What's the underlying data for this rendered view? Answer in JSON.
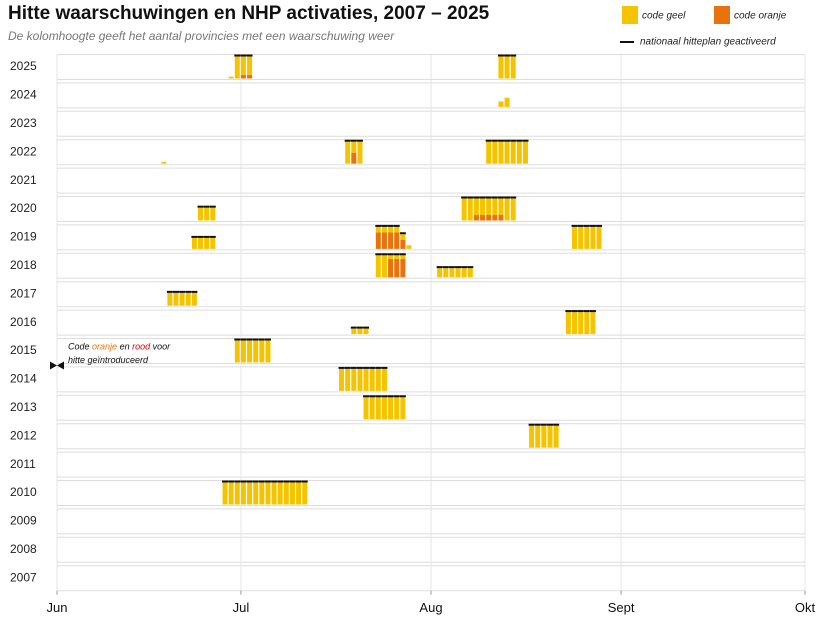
{
  "chart_data": {
    "type": "timeline-bar",
    "title": "Hitte waarschuwingen en NHP activaties, 2007 – 2025",
    "subtitle": "De kolomhoogte geeft het aantal provincies met een waarschuwing weer",
    "series": [
      {
        "name": "code geel",
        "color": "#f5c400"
      },
      {
        "name": "code oranje",
        "color": "#e8730c"
      }
    ],
    "line_legend": "nationaal hitteplan geactiveerd",
    "xlim": [
      0,
      122
    ],
    "xticks": [
      {
        "value": 0,
        "label": "Jun"
      },
      {
        "value": 30,
        "label": "Jul"
      },
      {
        "value": 61,
        "label": "Aug"
      },
      {
        "value": 92,
        "label": "Sept"
      },
      {
        "value": 122,
        "label": "Okt"
      }
    ],
    "ylim": [
      0,
      12
    ],
    "grid": true,
    "annotation": {
      "parts": [
        "Code ",
        "oranje",
        " en ",
        "rood",
        " voor"
      ],
      "line2": "hitte geïntroduceerd",
      "x": 0,
      "year": "2015"
    },
    "rows": [
      {
        "year": "2025",
        "x": [
          28,
          29,
          30,
          31,
          72,
          73,
          74
        ],
        "geel": [
          1,
          12,
          10,
          10,
          12,
          12,
          12
        ],
        "oranje": [
          0,
          0,
          2,
          2,
          0,
          0,
          0
        ],
        "nhp": [
          false,
          true,
          true,
          true,
          true,
          true,
          true
        ]
      },
      {
        "year": "2024",
        "x": [
          72,
          73
        ],
        "geel": [
          3,
          5
        ],
        "oranje": [
          0,
          0
        ],
        "nhp": [
          false,
          false
        ]
      },
      {
        "year": "2023",
        "x": [],
        "geel": [],
        "oranje": [],
        "nhp": []
      },
      {
        "year": "2022",
        "x": [
          17,
          47,
          48,
          49,
          70,
          71,
          72,
          73,
          74,
          75,
          76
        ],
        "geel": [
          1,
          12,
          6,
          12,
          12,
          12,
          12,
          12,
          12,
          12,
          12
        ],
        "oranje": [
          0,
          0,
          6,
          0,
          0,
          0,
          0,
          0,
          0,
          0,
          0
        ],
        "nhp": [
          false,
          true,
          true,
          true,
          true,
          true,
          true,
          true,
          true,
          true,
          true
        ]
      },
      {
        "year": "2021",
        "x": [],
        "geel": [],
        "oranje": [],
        "nhp": []
      },
      {
        "year": "2020",
        "x": [
          23,
          24,
          25,
          66,
          67,
          68,
          69,
          70,
          71,
          72,
          73,
          74
        ],
        "geel": [
          7,
          7,
          7,
          12,
          12,
          9,
          9,
          9,
          9,
          9,
          12,
          12
        ],
        "oranje": [
          0,
          0,
          0,
          0,
          0,
          3,
          3,
          3,
          3,
          3,
          0,
          0
        ],
        "nhp": [
          true,
          true,
          true,
          true,
          true,
          true,
          true,
          true,
          true,
          true,
          true,
          true
        ]
      },
      {
        "year": "2019",
        "x": [
          22,
          23,
          24,
          25,
          52,
          53,
          54,
          55,
          56,
          57,
          84,
          85,
          86,
          87,
          88
        ],
        "geel": [
          6,
          6,
          6,
          6,
          3,
          3,
          3,
          3,
          3,
          2,
          12,
          12,
          12,
          12,
          12
        ],
        "oranje": [
          0,
          0,
          0,
          0,
          9,
          9,
          9,
          9,
          5,
          0,
          0,
          0,
          0,
          0,
          0
        ],
        "nhp": [
          true,
          true,
          true,
          true,
          true,
          true,
          true,
          true,
          true,
          false,
          true,
          true,
          true,
          true,
          true
        ]
      },
      {
        "year": "2018",
        "x": [
          52,
          53,
          54,
          55,
          56,
          62,
          63,
          64,
          65,
          66,
          67
        ],
        "geel": [
          12,
          12,
          2,
          2,
          2,
          5,
          5,
          5,
          5,
          5,
          5
        ],
        "oranje": [
          0,
          0,
          10,
          10,
          10,
          0,
          0,
          0,
          0,
          0,
          0
        ],
        "nhp": [
          true,
          true,
          true,
          true,
          true,
          true,
          true,
          true,
          true,
          true,
          true
        ]
      },
      {
        "year": "2017",
        "x": [
          18,
          19,
          20,
          21,
          22
        ],
        "geel": [
          7,
          7,
          7,
          7,
          7
        ],
        "oranje": [
          0,
          0,
          0,
          0,
          0
        ],
        "nhp": [
          true,
          true,
          true,
          true,
          true
        ]
      },
      {
        "year": "2016",
        "x": [
          48,
          49,
          50,
          83,
          84,
          85,
          86,
          87
        ],
        "geel": [
          3,
          3,
          3,
          12,
          12,
          12,
          12,
          12
        ],
        "oranje": [
          0,
          0,
          0,
          0,
          0,
          0,
          0,
          0
        ],
        "nhp": [
          true,
          true,
          true,
          true,
          true,
          true,
          true,
          true
        ]
      },
      {
        "year": "2015",
        "x": [
          29,
          30,
          31,
          32,
          33,
          34
        ],
        "geel": [
          12,
          12,
          12,
          12,
          12,
          12
        ],
        "oranje": [
          0,
          0,
          0,
          0,
          0,
          0
        ],
        "nhp": [
          true,
          true,
          true,
          true,
          true,
          true
        ]
      },
      {
        "year": "2014",
        "x": [
          46,
          47,
          48,
          49,
          50,
          51,
          52,
          53
        ],
        "geel": [
          12,
          12,
          12,
          12,
          12,
          12,
          12,
          12
        ],
        "oranje": [
          0,
          0,
          0,
          0,
          0,
          0,
          0,
          0
        ],
        "nhp": [
          true,
          true,
          true,
          true,
          true,
          true,
          true,
          true
        ]
      },
      {
        "year": "2013",
        "x": [
          50,
          51,
          52,
          53,
          54,
          55,
          56
        ],
        "geel": [
          12,
          12,
          12,
          12,
          12,
          12,
          12
        ],
        "oranje": [
          0,
          0,
          0,
          0,
          0,
          0,
          0
        ],
        "nhp": [
          true,
          true,
          true,
          true,
          true,
          true,
          true
        ]
      },
      {
        "year": "2012",
        "x": [
          77,
          78,
          79,
          80,
          81
        ],
        "geel": [
          12,
          12,
          12,
          12,
          12
        ],
        "oranje": [
          0,
          0,
          0,
          0,
          0
        ],
        "nhp": [
          true,
          true,
          true,
          true,
          true
        ]
      },
      {
        "year": "2011",
        "x": [],
        "geel": [],
        "oranje": [],
        "nhp": []
      },
      {
        "year": "2010",
        "x": [
          27,
          28,
          29,
          30,
          31,
          32,
          33,
          34,
          35,
          36,
          37,
          38,
          39,
          40
        ],
        "geel": [
          12,
          12,
          12,
          12,
          12,
          12,
          12,
          12,
          12,
          12,
          12,
          12,
          12,
          12
        ],
        "oranje": [
          0,
          0,
          0,
          0,
          0,
          0,
          0,
          0,
          0,
          0,
          0,
          0,
          0,
          0
        ],
        "nhp": [
          true,
          true,
          true,
          true,
          true,
          true,
          true,
          true,
          true,
          true,
          true,
          true,
          true,
          true
        ]
      },
      {
        "year": "2009",
        "x": [],
        "geel": [],
        "oranje": [],
        "nhp": []
      },
      {
        "year": "2008",
        "x": [],
        "geel": [],
        "oranje": [],
        "nhp": []
      },
      {
        "year": "2007",
        "x": [],
        "geel": [],
        "oranje": [],
        "nhp": []
      }
    ]
  }
}
